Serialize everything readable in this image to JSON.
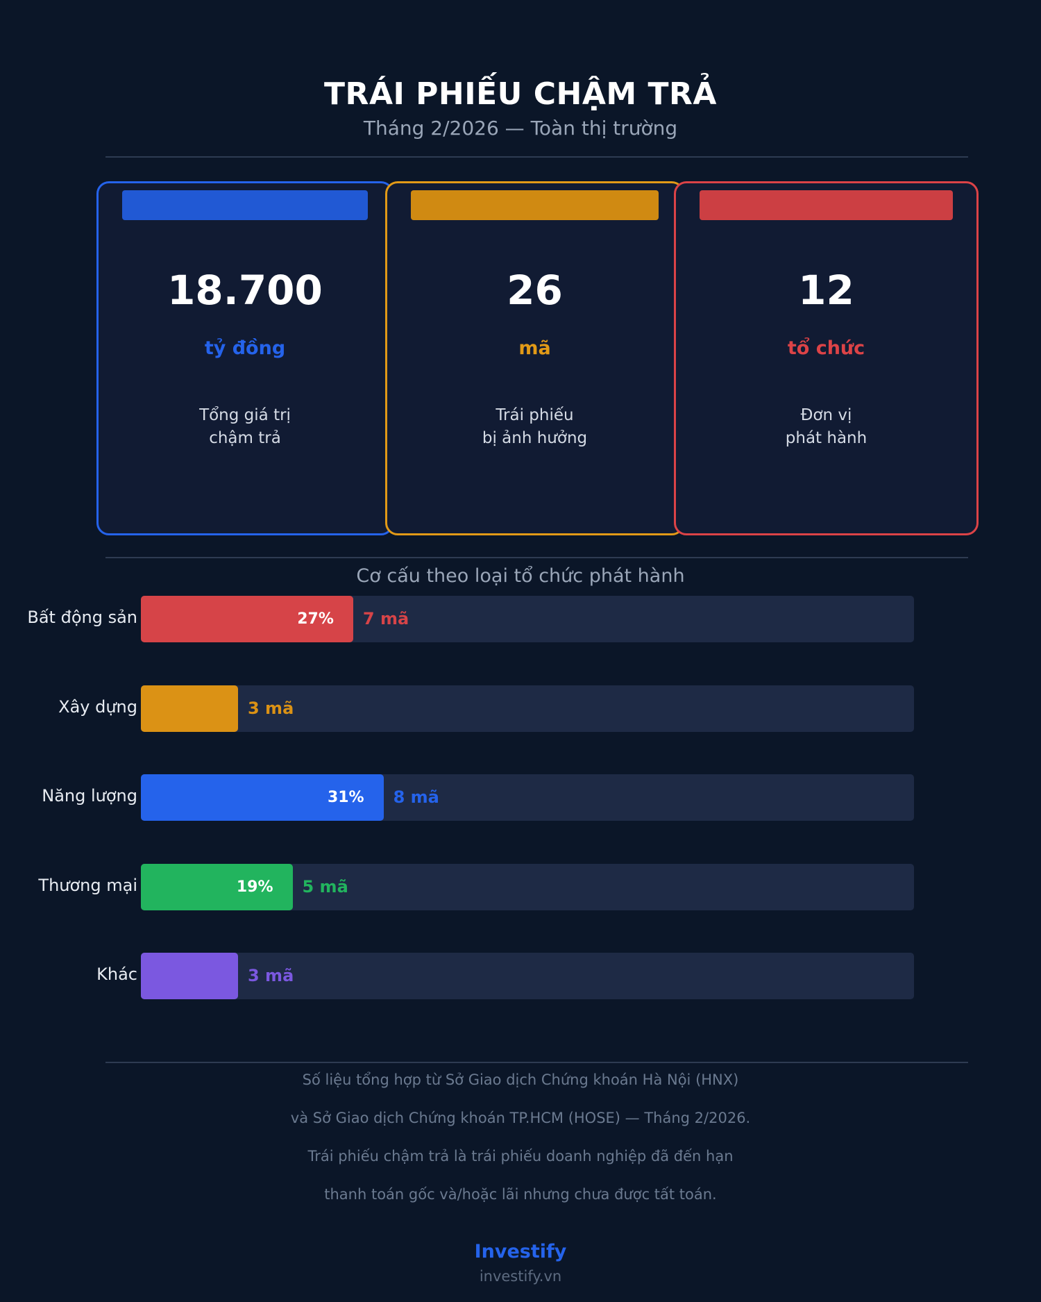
{
  "header": {
    "title": "TRÁI PHIẾU CHẬM TRẢ",
    "subtitle": "Tháng 2/2026 — Toàn thị trường"
  },
  "cards": [
    {
      "value": "18.700",
      "unit": "tỷ đồng",
      "desc1": "Tổng giá trị",
      "desc2": "chậm trả",
      "color": "#2563eb",
      "bar_color": "#2159d4"
    },
    {
      "value": "26",
      "unit": "mã",
      "desc1": "Trái phiếu",
      "desc2": "bị ảnh hưởng",
      "color": "#e29a17",
      "bar_color": "#d08a12"
    },
    {
      "value": "12",
      "unit": "tổ chức",
      "desc1": "Đơn vị",
      "desc2": "phát hành",
      "color": "#dc4347",
      "bar_color": "#cc3f43"
    }
  ],
  "chart_data": {
    "type": "bar",
    "title": "Cơ cấu theo loại tổ chức phát hành",
    "total": 26,
    "categories": [
      "Bất động sản",
      "Xây dựng",
      "Năng lượng",
      "Thương mại",
      "Khác"
    ],
    "counts": [
      7,
      3,
      8,
      5,
      3
    ],
    "count_labels": [
      "7 mã",
      "3 mã",
      "8 mã",
      "5 mã",
      "3 mã"
    ],
    "percent_labels": [
      "27%",
      "",
      "31%",
      "19%",
      ""
    ],
    "colors": [
      "#d64448",
      "#db9215",
      "#2563eb",
      "#22b45e",
      "#7b58e0"
    ]
  },
  "footer": {
    "lines": [
      "Số liệu tổng hợp từ Sở Giao dịch Chứng khoán Hà Nội (HNX)",
      "và Sở Giao dịch Chứng khoán TP.HCM (HOSE) — Tháng 2/2026.",
      "Trái phiếu chậm trả là trái phiếu doanh nghiệp đã đến hạn",
      "thanh toán gốc và/hoặc lãi nhưng chưa được tất toán."
    ],
    "brand": "Investify",
    "site": "investify.vn"
  }
}
